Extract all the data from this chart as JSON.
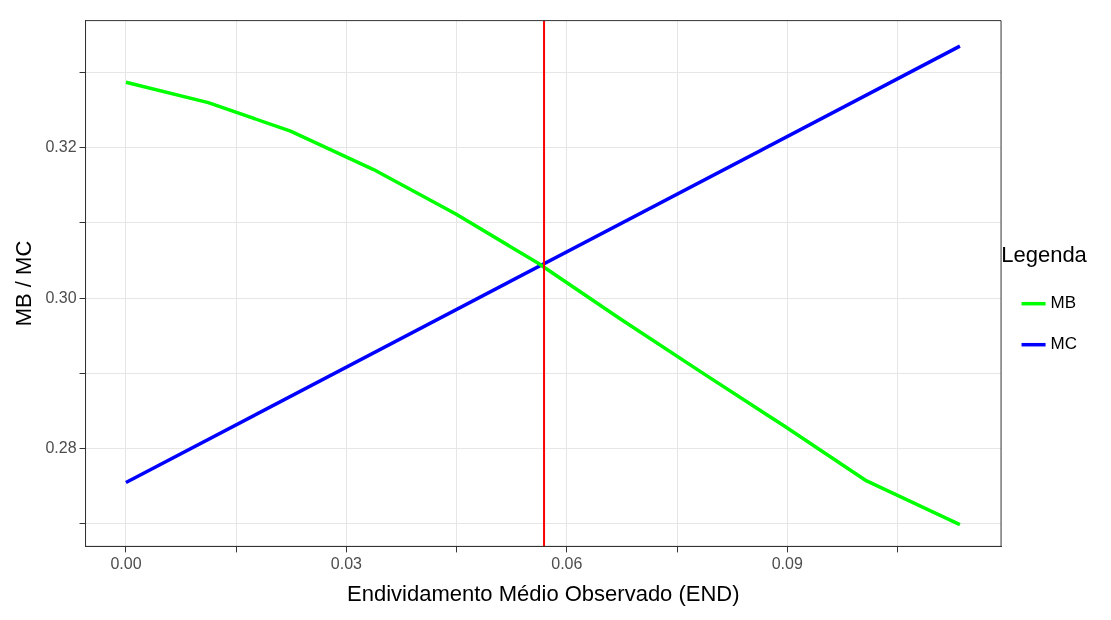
{
  "chart_data": {
    "type": "line",
    "xlabel": "Endividamento Médio Observado (END)",
    "ylabel": "MB / MC",
    "legend_title": "Legenda",
    "legend": "right",
    "grid": true,
    "marker": "none",
    "line_style": "solid",
    "xlim": [
      -0.0055,
      0.1191
    ],
    "ylim": [
      0.267,
      0.3369
    ],
    "xticks": [
      {
        "value": 0,
        "label": "0.00"
      },
      {
        "value": 0.015,
        "label": null
      },
      {
        "value": 0.03,
        "label": "0.03"
      },
      {
        "value": 0.045,
        "label": null
      },
      {
        "value": 0.06,
        "label": "0.06"
      },
      {
        "value": 0.075,
        "label": null
      },
      {
        "value": 0.09,
        "label": "0.09"
      },
      {
        "value": 0.105,
        "label": null
      }
    ],
    "yticks": [
      {
        "value": 0.27,
        "label": null
      },
      {
        "value": 0.28,
        "label": "0.28"
      },
      {
        "value": 0.29,
        "label": null
      },
      {
        "value": 0.3,
        "label": "0.30"
      },
      {
        "value": 0.31,
        "label": null
      },
      {
        "value": 0.32,
        "label": "0.32"
      },
      {
        "value": 0.33,
        "label": null
      }
    ],
    "series": [
      {
        "name": "MB",
        "color": "#00ff00",
        "x": [
          0,
          0.0112,
          0.0224,
          0.0337,
          0.0449,
          0.056,
          0.0672,
          0.0784,
          0.0896,
          0.1008,
          0.1135
        ],
        "values": [
          0.3287,
          0.326,
          0.3222,
          0.3171,
          0.3112,
          0.3047,
          0.2973,
          0.2901,
          0.283,
          0.2757,
          0.2699
        ]
      },
      {
        "name": "MC",
        "color": "#0000ff",
        "x": [
          0,
          0.1135
        ],
        "values": [
          0.2755,
          0.3335
        ]
      }
    ],
    "ref_lines": [
      {
        "axis": "x",
        "value": 0.0569,
        "color": "#ff0000"
      }
    ]
  }
}
